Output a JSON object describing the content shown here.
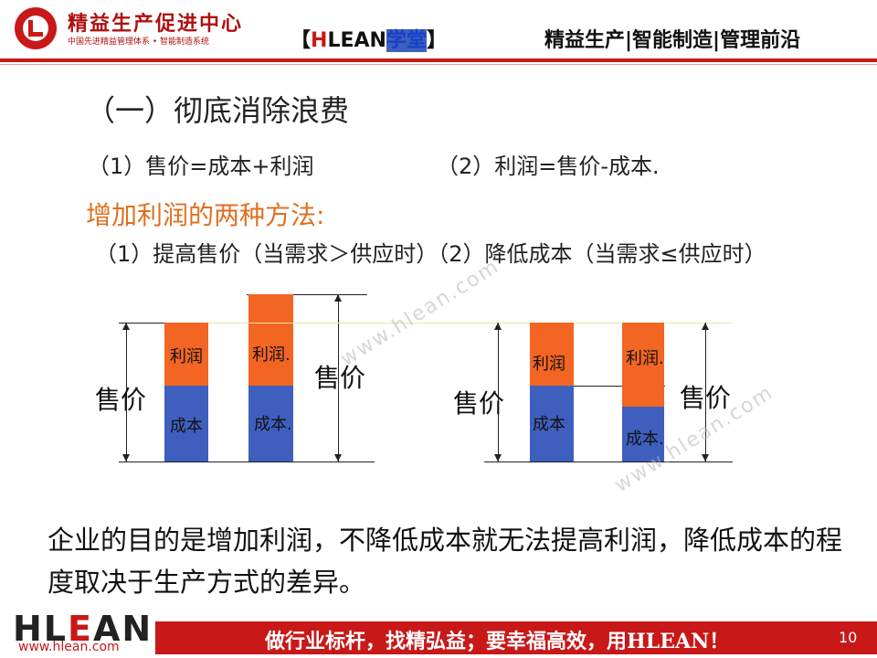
{
  "header": {
    "org_name": "精益生产促进中心",
    "org_subtitle": "中国先进精益管理体系 • 智能制造系统",
    "brand_left": "【",
    "brand_h": "H",
    "brand_lean": "LEAN",
    "brand_cn": "学堂",
    "brand_right": "】",
    "tagline": "精益生产|智能制造|管理前沿"
  },
  "content": {
    "section_title": "（一）彻底消除浪费",
    "formula_1": "（1）售价=成本+利润",
    "formula_2": "（2）利润=售价-成本.",
    "methods_title": "增加利润的两种方法:",
    "methods_line": "（1）提高售价（当需求＞供应时）（2）降低成本（当需求≤供应时）"
  },
  "diagram": {
    "left": {
      "price_label": "售价",
      "bar1_profit": "利润",
      "bar1_cost": "成本",
      "bar2_profit": "利润.",
      "bar2_cost": "成本.",
      "price_label_2": "售价"
    },
    "right": {
      "price_label": "售价",
      "bar1_profit": "利润",
      "bar1_cost": "成本",
      "bar2_profit": "利润.",
      "bar2_cost": "成本.",
      "price_label_2": "售价"
    },
    "colors": {
      "profit": "#f26522",
      "cost": "#3f5fbf"
    }
  },
  "watermarks": [
    "www.hlean.com",
    "www.hlean.com"
  ],
  "conclusion": "企业的目的是增加利润，不降低成本就无法提高利润，降低成本的程度取决于生产方式的差异。",
  "footer": {
    "logo_h": "HL",
    "logo_e": "E",
    "logo_an": "AN",
    "url": "www.hlean.com",
    "slogan": "做行业标杆，找精弘益；要幸福高效，用HLEAN！",
    "page_number": "10"
  }
}
